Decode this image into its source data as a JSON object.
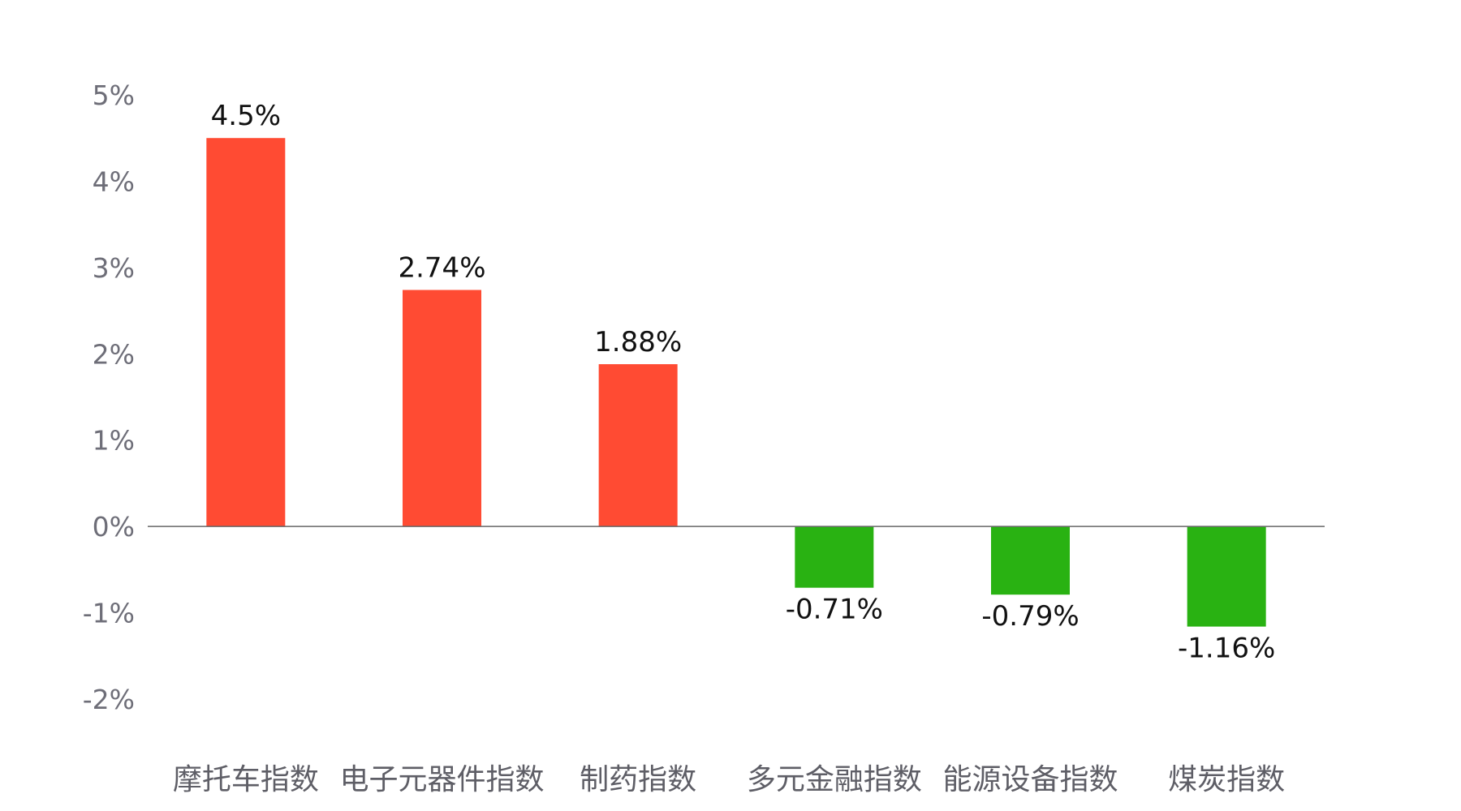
{
  "chart_data": {
    "type": "bar",
    "title": "",
    "xlabel": "",
    "ylabel": "",
    "categories": [
      "摩托车指数",
      "电子元器件指数",
      "制药指数",
      "多元金融指数",
      "能源设备指数",
      "煤炭指数"
    ],
    "values": [
      4.5,
      2.74,
      1.88,
      -0.71,
      -0.79,
      -1.16
    ],
    "value_labels": [
      "4.5%",
      "2.74%",
      "1.88%",
      "-0.71%",
      "-0.79%",
      "-1.16%"
    ],
    "ylim": [
      -2,
      5
    ],
    "yticks": [
      5,
      4,
      3,
      2,
      1,
      0,
      -1,
      -2
    ],
    "ytick_labels": [
      "5%",
      "4%",
      "3%",
      "2%",
      "1%",
      "0%",
      "-1%",
      "-2%"
    ],
    "grid": false,
    "legend": "none",
    "colors": {
      "positive": "#ff4b33",
      "negative": "#29b212",
      "zero_line": "#666666",
      "tick_text": "#6e6e78",
      "category_text": "#5e5e66",
      "label_text": "#111111"
    }
  }
}
